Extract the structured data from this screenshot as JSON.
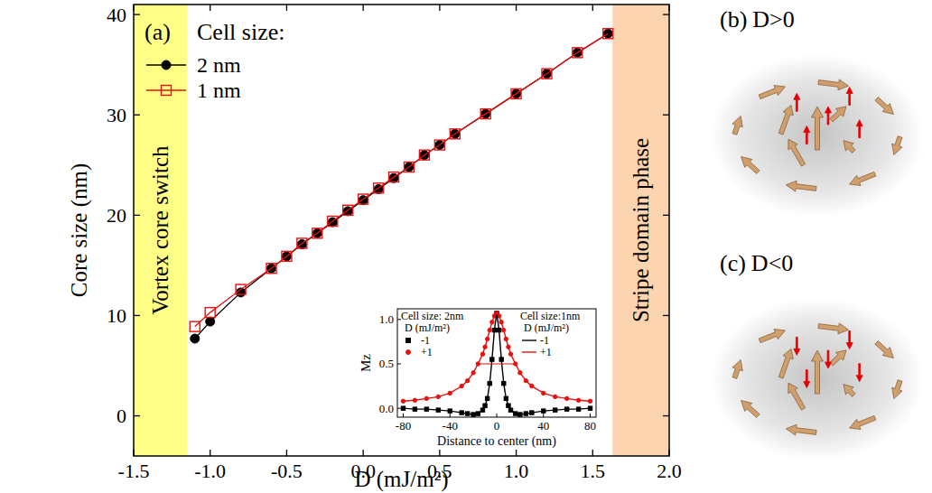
{
  "chart_data": [
    {
      "type": "line",
      "panel_label": "(a)",
      "x_label": "D (mJ/m²)",
      "y_label": "Core size (nm)",
      "legend_title": "Cell size:",
      "legend": "upper left",
      "grid": false,
      "x": [
        -1.1,
        -1.0,
        -0.8,
        -0.6,
        -0.5,
        -0.4,
        -0.3,
        -0.2,
        -0.1,
        0.0,
        0.1,
        0.2,
        0.3,
        0.4,
        0.5,
        0.6,
        0.8,
        1.0,
        1.2,
        1.4,
        1.6
      ],
      "series": [
        {
          "name": "2 nm",
          "color": "#000000",
          "marker": "circle",
          "line_style": "solid",
          "values": [
            7.7,
            9.4,
            12.3,
            14.7,
            15.9,
            17.1,
            18.2,
            19.3,
            20.4,
            21.5,
            22.6,
            23.7,
            24.8,
            26.0,
            27.0,
            28.1,
            30.1,
            32.1,
            34.1,
            36.2,
            38.1
          ]
        },
        {
          "name": "1 nm",
          "color": "#e8110f",
          "marker": "open-square",
          "line_style": "solid",
          "values": [
            8.9,
            10.3,
            12.6,
            14.7,
            15.9,
            17.2,
            18.2,
            19.4,
            20.5,
            21.6,
            22.7,
            23.8,
            24.8,
            26.0,
            27.0,
            28.1,
            30.1,
            32.1,
            34.1,
            36.2,
            38.1
          ]
        }
      ],
      "xlim": [
        -1.5,
        2.0
      ],
      "xticks": [
        -1.5,
        {
          "value": -1,
          "label": "-1.0"
        },
        -0.5,
        {
          "value": 0,
          "label": "0.0"
        },
        0.5,
        {
          "value": 1,
          "label": "1.0"
        },
        1.5,
        {
          "value": 2,
          "label": "2.0"
        }
      ],
      "ylim": [
        -4,
        41
      ],
      "yticks": [
        0,
        10,
        20,
        30,
        40
      ],
      "regions": [
        {
          "label": "Vortex core switch",
          "from": -1.5,
          "to": -1.15,
          "color": "#ffff88"
        },
        {
          "label": "Stripe domain phase",
          "from": 1.63,
          "to": 2.0,
          "color": "#fcd5b0"
        }
      ]
    },
    {
      "type": "line",
      "x_label": "Distance to center (nm)",
      "y_label": "Mz",
      "x": [
        -80,
        -70,
        -60,
        -50,
        -40,
        -30,
        -25,
        -20,
        -16,
        -12,
        -10,
        -8,
        -6,
        -4,
        -2,
        0,
        2,
        4,
        6,
        8,
        10,
        12,
        16,
        20,
        25,
        30,
        40,
        50,
        60,
        70,
        80
      ],
      "xlim": [
        -85,
        85
      ],
      "xticks": [
        -80,
        -40,
        0,
        40,
        80
      ],
      "ylim": [
        -0.1,
        1.12
      ],
      "yticks": [
        {
          "value": 0,
          "label": "0.0"
        },
        {
          "value": 0.5,
          "label": "0.5"
        },
        {
          "value": 1,
          "label": "1.0"
        }
      ],
      "groups": [
        {
          "title": "Cell size: 2nm",
          "subtitle": "D (mJ/m²)",
          "series": [
            {
              "name": "-1",
              "color": "#000000",
              "marker": "square",
              "line_style": "none",
              "values": [
                0.0,
                -0.01,
                -0.01,
                -0.02,
                -0.03,
                -0.05,
                -0.06,
                -0.07,
                -0.06,
                -0.02,
                0.03,
                0.11,
                0.28,
                0.55,
                0.88,
                1.07,
                0.88,
                0.55,
                0.28,
                0.11,
                0.03,
                -0.02,
                -0.06,
                -0.07,
                -0.06,
                -0.05,
                -0.03,
                -0.02,
                -0.01,
                -0.01,
                0.0
              ]
            },
            {
              "name": "+1",
              "color": "#e8110f",
              "marker": "circle",
              "line_style": "none",
              "values": [
                0.08,
                0.09,
                0.11,
                0.13,
                0.17,
                0.25,
                0.31,
                0.4,
                0.5,
                0.61,
                0.69,
                0.78,
                0.88,
                0.97,
                1.04,
                1.07,
                1.04,
                0.97,
                0.88,
                0.78,
                0.69,
                0.61,
                0.5,
                0.4,
                0.31,
                0.25,
                0.17,
                0.13,
                0.11,
                0.09,
                0.08
              ]
            }
          ]
        },
        {
          "title": "Cell size:1nm",
          "subtitle": "D (mJ/m²)",
          "series": [
            {
              "name": "-1",
              "color": "#000000",
              "marker": "none",
              "line_style": "solid",
              "values": [
                0.0,
                -0.01,
                -0.01,
                -0.02,
                -0.03,
                -0.05,
                -0.06,
                -0.07,
                -0.06,
                -0.02,
                0.03,
                0.11,
                0.28,
                0.55,
                0.88,
                1.07,
                0.88,
                0.55,
                0.28,
                0.11,
                0.03,
                -0.02,
                -0.06,
                -0.07,
                -0.06,
                -0.05,
                -0.03,
                -0.02,
                -0.01,
                -0.01,
                0.0
              ]
            },
            {
              "name": "+1",
              "color": "#e8110f",
              "marker": "none",
              "line_style": "solid",
              "values": [
                0.08,
                0.09,
                0.11,
                0.13,
                0.17,
                0.25,
                0.31,
                0.4,
                0.5,
                0.61,
                0.69,
                0.78,
                0.88,
                0.97,
                1.04,
                1.07,
                1.04,
                0.97,
                0.88,
                0.78,
                0.69,
                0.61,
                0.5,
                0.4,
                0.31,
                0.25,
                0.17,
                0.13,
                0.11,
                0.09,
                0.08
              ]
            }
          ]
        }
      ],
      "reference_line": {
        "x": [
          -16,
          16
        ],
        "y": 0.5,
        "color": "#e8110f"
      }
    }
  ],
  "illustrations": [
    {
      "label": "(b)",
      "title": "D>0",
      "arrow_direction": "up"
    },
    {
      "label": "(c)",
      "title": "D<0",
      "arrow_direction": "down"
    }
  ]
}
